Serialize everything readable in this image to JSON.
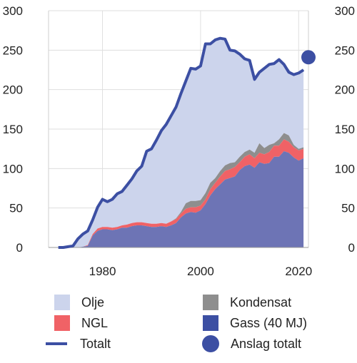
{
  "chart_data": {
    "type": "area",
    "title": "",
    "xlabel": "",
    "ylabel": "",
    "ylim": [
      0,
      300
    ],
    "xlim": [
      1969,
      2022
    ],
    "x_ticks": [
      "1980",
      "2000",
      "2020"
    ],
    "y_ticks": [
      "0",
      "50",
      "100",
      "150",
      "200",
      "250",
      "300"
    ],
    "grid": true,
    "legend_position": "bottom",
    "x": [
      1971,
      1972,
      1973,
      1974,
      1975,
      1976,
      1977,
      1978,
      1979,
      1980,
      1981,
      1982,
      1983,
      1984,
      1985,
      1986,
      1987,
      1988,
      1989,
      1990,
      1991,
      1992,
      1993,
      1994,
      1995,
      1996,
      1997,
      1998,
      1999,
      2000,
      2001,
      2002,
      2003,
      2004,
      2005,
      2006,
      2007,
      2008,
      2009,
      2010,
      2011,
      2012,
      2013,
      2014,
      2015,
      2016,
      2017,
      2018,
      2019,
      2020,
      2021
    ],
    "series": [
      {
        "name": "Gass (40 MJ)",
        "color": "#6d74b5",
        "values": [
          0,
          0,
          0,
          0,
          0,
          1,
          2,
          15,
          21,
          23,
          23,
          22,
          23,
          25,
          25,
          27,
          28,
          28,
          27,
          26,
          26,
          27,
          26,
          28,
          31,
          38,
          43,
          45,
          44,
          47,
          55,
          66,
          74,
          80,
          86,
          88,
          90,
          98,
          103,
          105,
          101,
          108,
          106,
          107,
          115,
          115,
          122,
          120,
          114,
          110,
          113
        ]
      },
      {
        "name": "NGL",
        "color": "#f06266",
        "values": [
          0,
          0,
          0,
          0,
          0,
          0,
          1,
          2,
          3,
          3,
          3,
          3,
          3,
          3,
          4,
          4,
          4,
          4,
          4,
          4,
          4,
          4,
          4,
          5,
          5,
          5,
          6,
          6,
          7,
          6,
          6,
          8,
          8,
          10,
          11,
          11,
          12,
          10,
          12,
          13,
          12,
          12,
          12,
          14,
          14,
          14,
          15,
          14,
          13,
          13,
          12
        ]
      },
      {
        "name": "Kondensat",
        "color": "#8e8e8e",
        "values": [
          0,
          0,
          0,
          0,
          0,
          0,
          0,
          0,
          0,
          0,
          0,
          0,
          0,
          0,
          0,
          0,
          0,
          0,
          0,
          0,
          0,
          0,
          0,
          0,
          1,
          2,
          7,
          8,
          8,
          7,
          8,
          8,
          6,
          7,
          7,
          8,
          6,
          7,
          6,
          6,
          7,
          12,
          8,
          9,
          3,
          8,
          8,
          8,
          3,
          2,
          2
        ]
      },
      {
        "name": "Olje",
        "color": "#ccd4ec",
        "values": [
          0,
          0,
          1,
          2,
          11,
          16,
          18,
          18,
          27,
          35,
          32,
          36,
          42,
          43,
          50,
          56,
          65,
          71,
          91,
          95,
          106,
          117,
          126,
          134,
          141,
          150,
          155,
          168,
          167,
          170,
          189,
          176,
          175,
          168,
          160,
          143,
          141,
          130,
          118,
          113,
          93,
          90,
          101,
          102,
          101,
          101,
          87,
          84,
          89,
          96,
          98
        ]
      },
      {
        "name": "Totalt",
        "color": "#3c4fa3",
        "values": [
          0,
          0,
          1,
          2,
          11,
          17,
          21,
          35,
          51,
          61,
          58,
          61,
          68,
          71,
          79,
          87,
          97,
          103,
          122,
          125,
          136,
          148,
          156,
          167,
          178,
          195,
          211,
          227,
          226,
          230,
          258,
          258,
          263,
          265,
          264,
          250,
          249,
          245,
          239,
          237,
          213,
          222,
          227,
          232,
          233,
          238,
          232,
          222,
          219,
          221,
          225
        ]
      },
      {
        "name": "Anslag totalt",
        "color": "#3c4fa3",
        "points": [
          {
            "x": 2022,
            "y": 241
          }
        ]
      }
    ]
  },
  "legend": [
    {
      "label": "Olje",
      "kind": "box",
      "color": "#ccd4ec"
    },
    {
      "label": "Kondensat",
      "kind": "box",
      "color": "#8e8e8e"
    },
    {
      "label": "NGL",
      "kind": "box",
      "color": "#f06266"
    },
    {
      "label": "Gass (40 MJ)",
      "kind": "box",
      "color": "#3c4fa3"
    },
    {
      "label": "Totalt",
      "kind": "line",
      "color": "#3c4fa3"
    },
    {
      "label": "Anslag totalt",
      "kind": "dot",
      "color": "#3c4fa3"
    }
  ]
}
